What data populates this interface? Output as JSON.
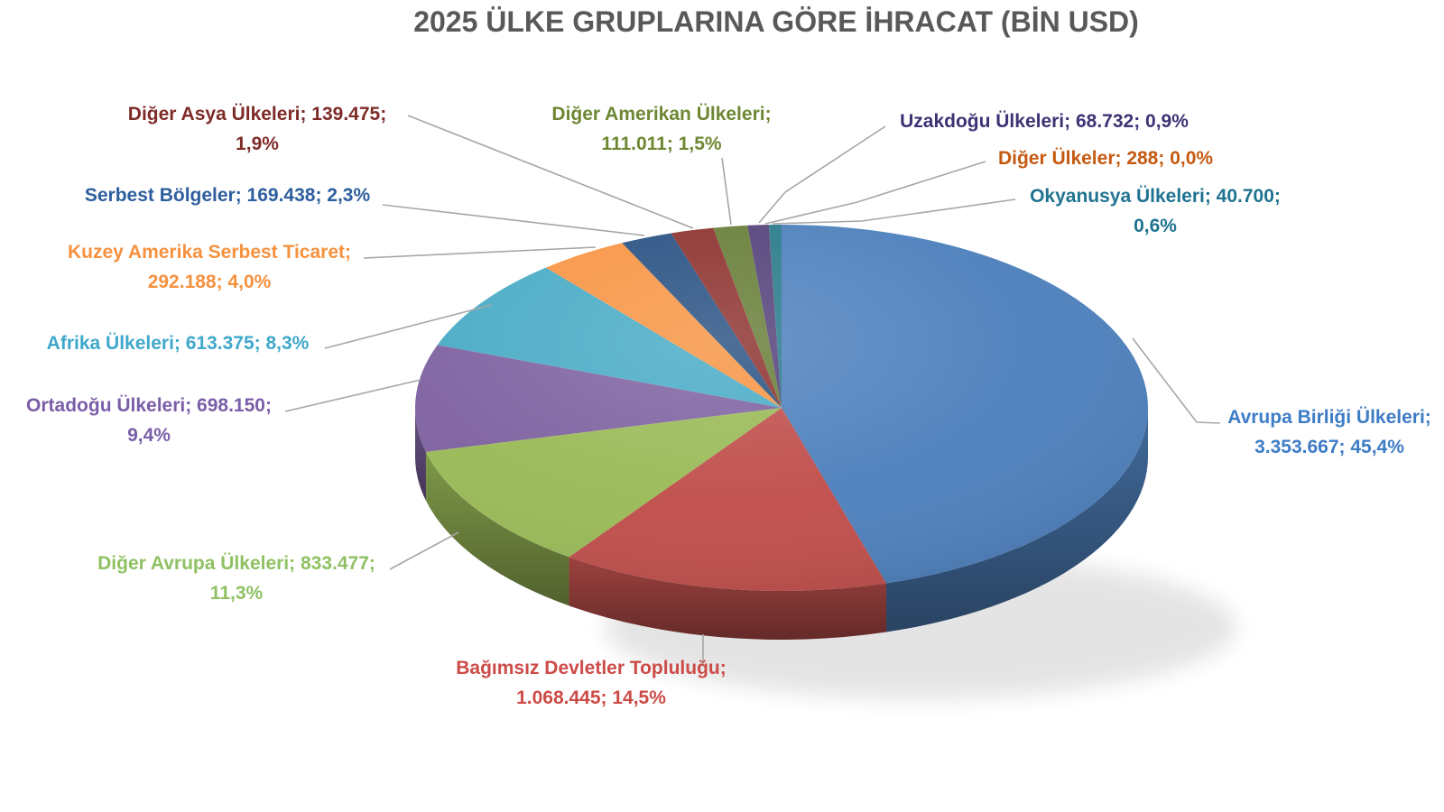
{
  "title": "2025 ÜLKE GRUPLARINA GÖRE İHRACAT (BİN USD)",
  "chart_data": {
    "type": "pie",
    "style": "3d",
    "title": "2025 ÜLKE GRUPLARINA GÖRE İHRACAT (BİN USD)",
    "value_unit": "BİN USD",
    "legend": "none",
    "labels_show": [
      "name",
      "value",
      "percent"
    ],
    "label_separator": "; ",
    "slices": [
      {
        "key": "avrupa_birligi",
        "name": "Avrupa Birliği Ülkeleri",
        "value": 3353667,
        "value_text": "3.353.667",
        "percent": 45.4,
        "percent_text": "45,4%",
        "color": "#4F81BD",
        "label_color": "#3E7CC6"
      },
      {
        "key": "bagimsiz",
        "name": "Bağımsız Devletler Topluluğu",
        "value": 1068445,
        "value_text": "1.068.445",
        "percent": 14.5,
        "percent_text": "14,5%",
        "color": "#C0504D",
        "label_color": "#CC4B47"
      },
      {
        "key": "diger_avrupa",
        "name": "Diğer Avrupa Ülkeleri",
        "value": 833477,
        "value_text": "833.477",
        "percent": 11.3,
        "percent_text": "11,3%",
        "color": "#9BBB59",
        "label_color": "#8FC163"
      },
      {
        "key": "ortadogu",
        "name": "Ortadoğu Ülkeleri",
        "value": 698150,
        "value_text": "698.150",
        "percent": 9.4,
        "percent_text": "9,4%",
        "color": "#8064A2",
        "label_color": "#7A5EA8"
      },
      {
        "key": "afrika",
        "name": "Afrika Ülkeleri",
        "value": 613375,
        "value_text": "613.375",
        "percent": 8.3,
        "percent_text": "8,3%",
        "color": "#4BACC6",
        "label_color": "#3FA8CB"
      },
      {
        "key": "kuzey_amerika",
        "name": "Kuzey Amerika Serbest Ticaret",
        "value": 292188,
        "value_text": "292.188",
        "percent": 4.0,
        "percent_text": "4,0%",
        "color": "#F79646",
        "label_color": "#F6913F"
      },
      {
        "key": "serbest",
        "name": "Serbest Bölgeler",
        "value": 169438,
        "value_text": "169.438",
        "percent": 2.3,
        "percent_text": "2,3%",
        "color": "#2B5384",
        "label_color": "#2D5E9E"
      },
      {
        "key": "diger_asya",
        "name": "Diğer Asya Ülkeleri",
        "value": 139475,
        "value_text": "139.475",
        "percent": 1.9,
        "percent_text": "1,9%",
        "color": "#8E3431",
        "label_color": "#7E2B28"
      },
      {
        "key": "diger_amerikan",
        "name": "Diğer Amerikan Ülkeleri",
        "value": 111011,
        "value_text": "111.011",
        "percent": 1.5,
        "percent_text": "1,5%",
        "color": "#697F3A",
        "label_color": "#6E8733"
      },
      {
        "key": "uzakdogu",
        "name": "Uzakdoğu Ülkeleri",
        "value": 68732,
        "value_text": "68.732",
        "percent": 0.9,
        "percent_text": "0,9%",
        "color": "#55437B",
        "label_color": "#3F3274"
      },
      {
        "key": "diger_ulkeler",
        "name": "Diğer Ülkeler",
        "value": 288,
        "value_text": "288",
        "percent": 0.0,
        "percent_text": "0,0%",
        "color": "#B65708",
        "label_color": "#C45911"
      },
      {
        "key": "okyanusya",
        "name": "Okyanusya Ülkeleri",
        "value": 40700,
        "value_text": "40.700",
        "percent": 0.6,
        "percent_text": "0,6%",
        "color": "#2A7B8C",
        "label_color": "#1F7391"
      }
    ],
    "leader_line_color": "#A6A6A6"
  }
}
